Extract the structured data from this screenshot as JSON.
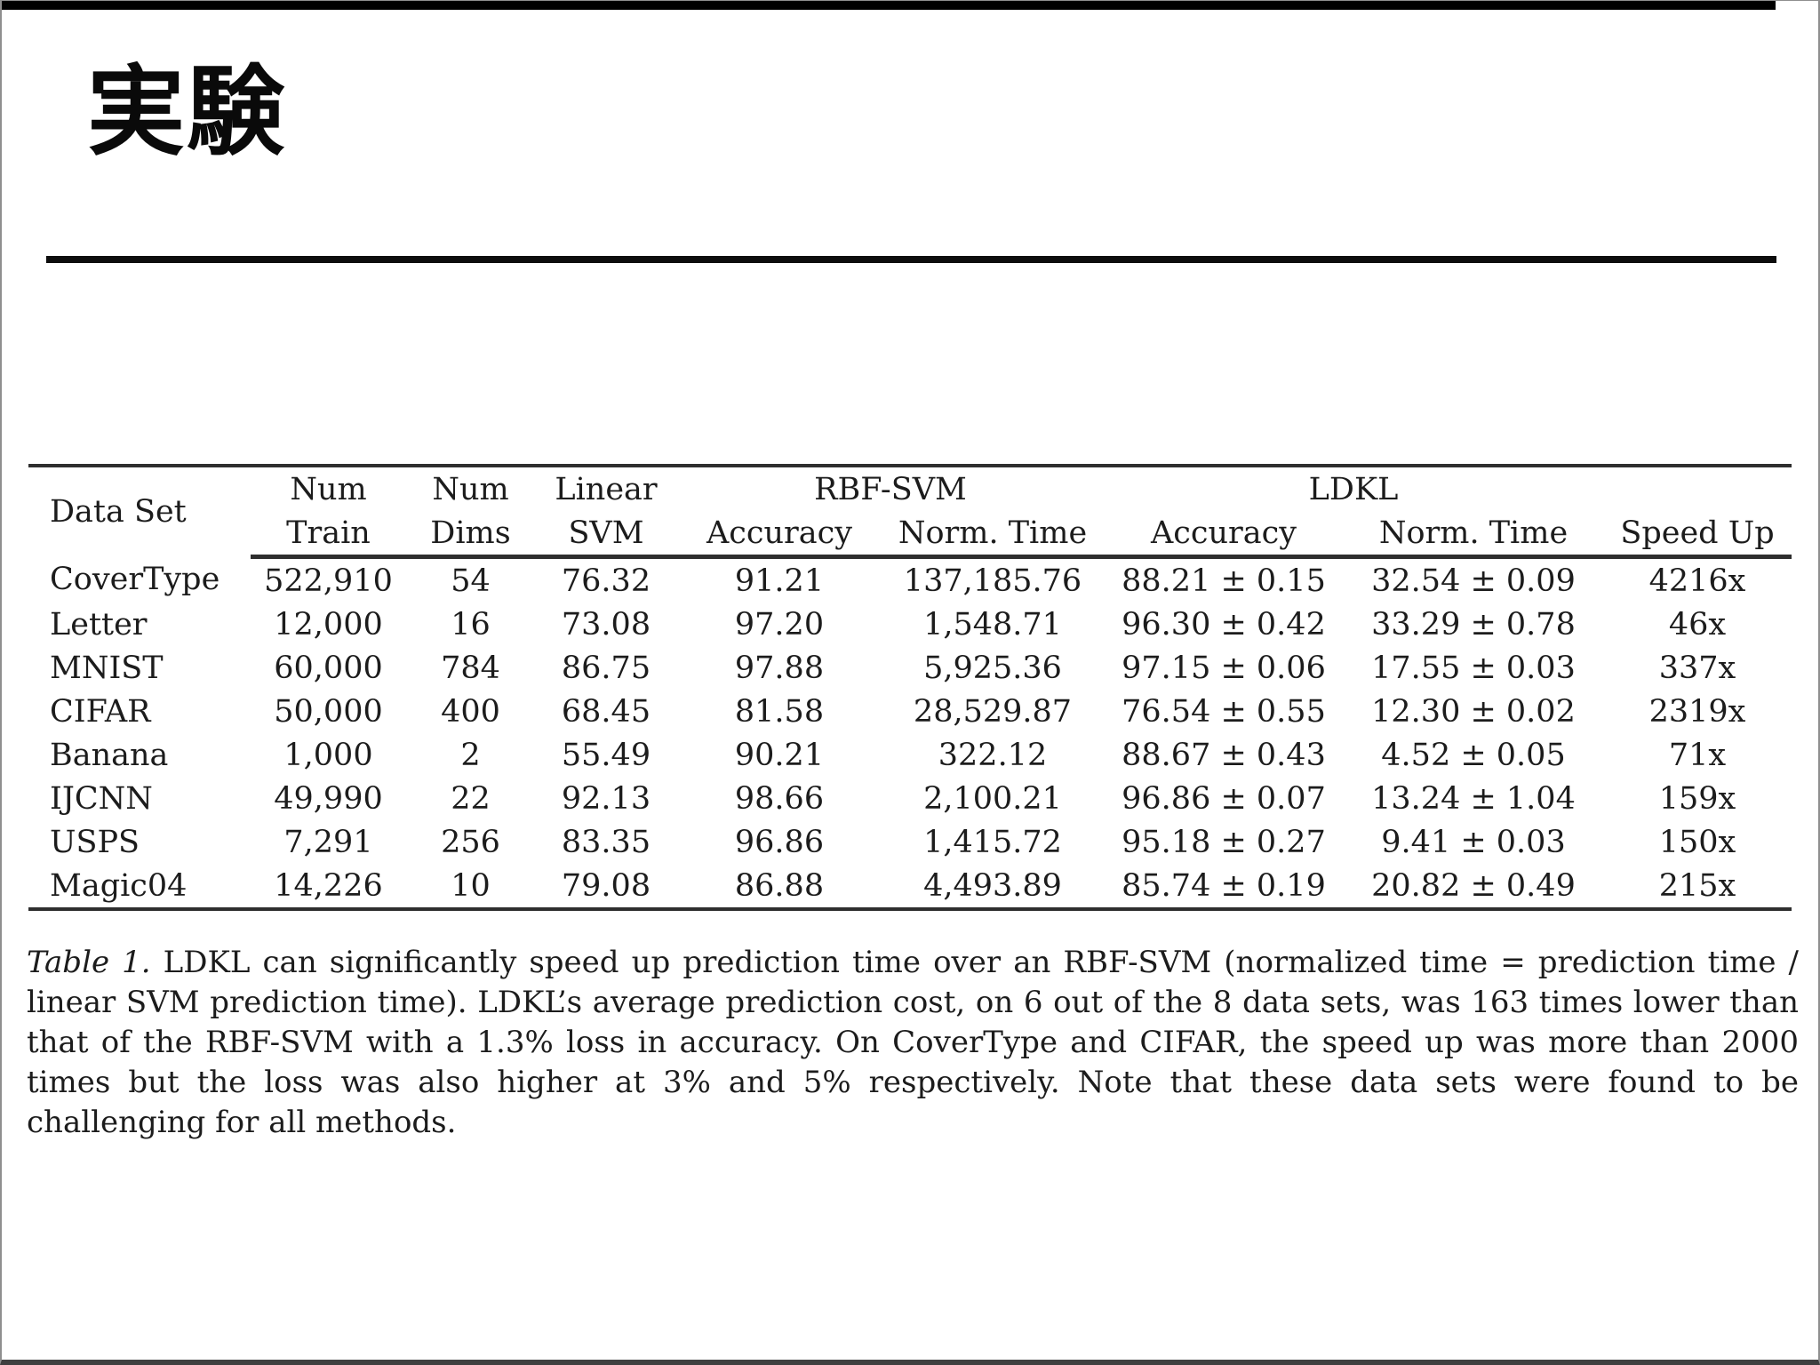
{
  "slide": {
    "title": "実験"
  },
  "colors": {
    "background": "#ffffff",
    "text": "#1a1a1a",
    "rule": "#2e2e2e",
    "top_bar": "#000000"
  },
  "table": {
    "headers": {
      "data_set": "Data Set",
      "num": "Num",
      "train": "Train",
      "num2": "Num",
      "dims": "Dims",
      "linear": "Linear",
      "svm": "SVM",
      "rbf_svm": "RBF-SVM",
      "ldkl": "LDKL",
      "accuracy_rbf": "Accuracy",
      "norm_time_rbf": "Norm. Time",
      "accuracy_ldkl": "Accuracy",
      "norm_time_ldkl": "Norm. Time",
      "speed_up": "Speed Up"
    },
    "rows": [
      [
        "CoverType",
        "522,910",
        "54",
        "76.32",
        "91.21",
        "137,185.76",
        "88.21 ± 0.15",
        "32.54 ± 0.09",
        "4216x"
      ],
      [
        "Letter",
        "12,000",
        "16",
        "73.08",
        "97.20",
        "1,548.71",
        "96.30 ± 0.42",
        "33.29 ± 0.78",
        "46x"
      ],
      [
        "MNIST",
        "60,000",
        "784",
        "86.75",
        "97.88",
        "5,925.36",
        "97.15 ± 0.06",
        "17.55 ± 0.03",
        "337x"
      ],
      [
        "CIFAR",
        "50,000",
        "400",
        "68.45",
        "81.58",
        "28,529.87",
        "76.54 ± 0.55",
        "12.30 ± 0.02",
        "2319x"
      ],
      [
        "Banana",
        "1,000",
        "2",
        "55.49",
        "90.21",
        "322.12",
        "88.67 ± 0.43",
        "4.52 ± 0.05",
        "71x"
      ],
      [
        "IJCNN",
        "49,990",
        "22",
        "92.13",
        "98.66",
        "2,100.21",
        "96.86 ± 0.07",
        "13.24 ± 1.04",
        "159x"
      ],
      [
        "USPS",
        "7,291",
        "256",
        "83.35",
        "96.86",
        "1,415.72",
        "95.18 ± 0.27",
        "9.41 ± 0.03",
        "150x"
      ],
      [
        "Magic04",
        "14,226",
        "10",
        "79.08",
        "86.88",
        "4,493.89",
        "85.74 ± 0.19",
        "20.82 ± 0.49",
        "215x"
      ]
    ]
  },
  "caption": {
    "label": "Table 1.",
    "text": "LDKL can significantly speed up prediction time over an RBF-SVM (normalized time = prediction time / linear SVM prediction time). LDKL’s average prediction cost, on 6 out of the 8 data sets, was 163 times lower than that of the RBF-SVM with a 1.3% loss in accuracy. On CoverType and CIFAR, the speed up was more than 2000 times but the loss was also higher at 3% and 5% respectively. Note that these data sets were found to be challenging for all methods."
  }
}
